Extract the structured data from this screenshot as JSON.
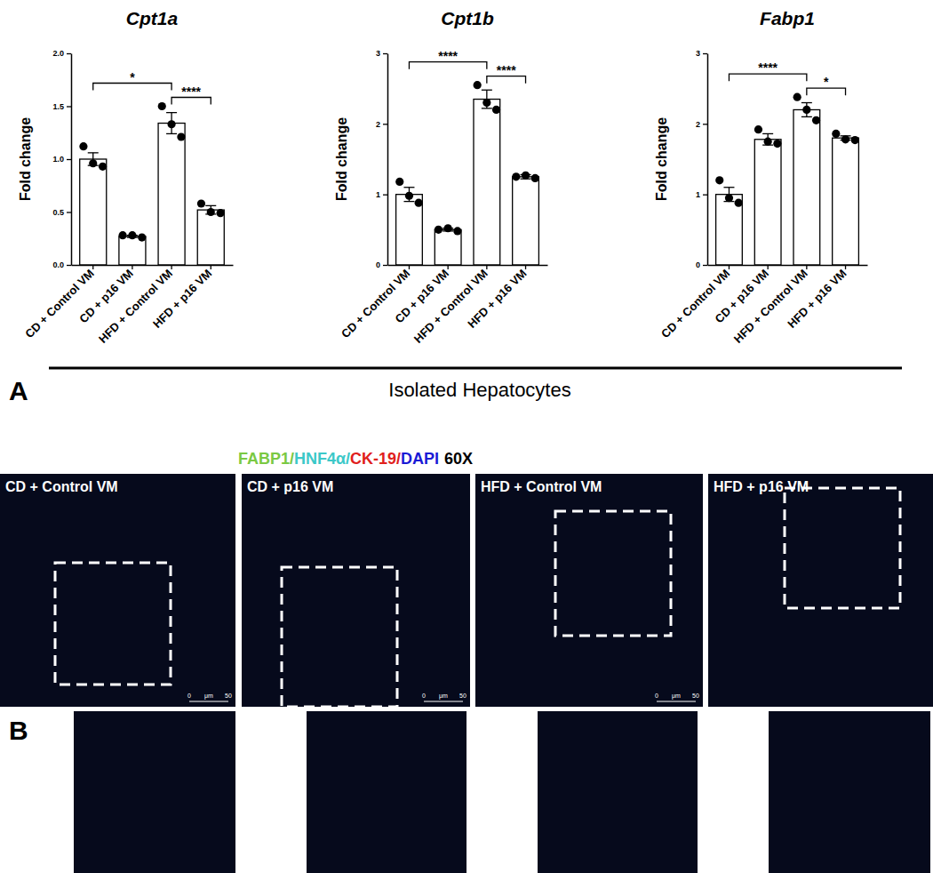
{
  "chart_data": [
    {
      "type": "bar",
      "title": "Cpt1a",
      "y_label": "Fold change",
      "color": "#ffffff",
      "grid": false,
      "categories": [
        "CD + Control VM",
        "CD + p16 VM",
        "HFD + Control VM",
        "HFD + p16 VM"
      ],
      "values": [
        1.0,
        0.27,
        1.34,
        0.52
      ],
      "errors": [
        0.06,
        0.01,
        0.1,
        0.04
      ],
      "points": [
        [
          1.12,
          0.96,
          0.93
        ],
        [
          0.28,
          0.28,
          0.26
        ],
        [
          1.5,
          1.33,
          1.21
        ],
        [
          0.58,
          0.5,
          0.49
        ]
      ],
      "ylim": [
        0,
        2
      ],
      "yticks": [
        {
          "value": 0,
          "label": "0.0"
        },
        {
          "value": 0.5,
          "label": "0.5"
        },
        {
          "value": 1,
          "label": "1.0"
        },
        {
          "value": 1.5,
          "label": "1.5"
        },
        {
          "value": 2,
          "label": "2.0"
        }
      ],
      "annotations": [
        {
          "between": [
            0,
            2
          ],
          "text": "*"
        },
        {
          "between": [
            2,
            3
          ],
          "text": "****"
        }
      ]
    },
    {
      "type": "bar",
      "title": "Cpt1b",
      "y_label": "Fold change",
      "color": "#ffffff",
      "grid": false,
      "categories": [
        "CD + Control VM",
        "CD +  p16 VM",
        "HFD + Control VM",
        "HFD + p16 VM"
      ],
      "values": [
        1.0,
        0.5,
        2.35,
        1.25
      ],
      "errors": [
        0.1,
        0.02,
        0.13,
        0.03
      ],
      "points": [
        [
          1.18,
          0.98,
          0.88
        ],
        [
          0.5,
          0.52,
          0.48
        ],
        [
          2.55,
          2.3,
          2.2
        ],
        [
          1.25,
          1.27,
          1.23
        ]
      ],
      "ylim": [
        0,
        3
      ],
      "yticks": [
        0,
        1,
        2,
        3
      ],
      "annotations": [
        {
          "between": [
            0,
            2
          ],
          "text": "****"
        },
        {
          "between": [
            2,
            3
          ],
          "text": "****"
        }
      ]
    },
    {
      "type": "bar",
      "title": "Fabp1",
      "y_label": "Fold change",
      "color": "#ffffff",
      "grid": false,
      "categories": [
        "CD + Control VM",
        "CD +  p16 VM",
        "HFD + Control VM",
        "HFD + p16 VM"
      ],
      "values": [
        1.0,
        1.78,
        2.2,
        1.8
      ],
      "errors": [
        0.1,
        0.08,
        0.1,
        0.03
      ],
      "points": [
        [
          1.2,
          0.95,
          0.88
        ],
        [
          1.92,
          1.75,
          1.72
        ],
        [
          2.38,
          2.2,
          2.05
        ],
        [
          1.86,
          1.78,
          1.77
        ]
      ],
      "ylim": [
        0,
        3
      ],
      "yticks": [
        0,
        1,
        2,
        3
      ],
      "annotations": [
        {
          "between": [
            0,
            2
          ],
          "text": "****"
        },
        {
          "between": [
            2,
            3
          ],
          "text": "*"
        }
      ]
    }
  ],
  "figure": {
    "panel_labels": [
      "A",
      "B"
    ],
    "panel_a_caption": "Isolated Hepatocytes",
    "stain_legend": {
      "stains": [
        {
          "name": "FABP1",
          "color": "#7ac943"
        },
        {
          "name": "HNF4α",
          "color": "#3cc8c8"
        },
        {
          "name": "CK-19",
          "color": "#e0201c"
        },
        {
          "name": "DAPI",
          "color": "#1a1ad6"
        }
      ],
      "separator": "/",
      "magnification": "60X"
    },
    "scale_bar_label": [
      "0",
      "μm",
      "50"
    ],
    "images": [
      {
        "label": "CD + Control VM",
        "scale_bar": true
      },
      {
        "label": "CD + p16 VM",
        "scale_bar": true
      },
      {
        "label": "HFD + Control VM",
        "scale_bar": true
      },
      {
        "label": "HFD + p16 VM",
        "scale_bar": false
      }
    ]
  }
}
